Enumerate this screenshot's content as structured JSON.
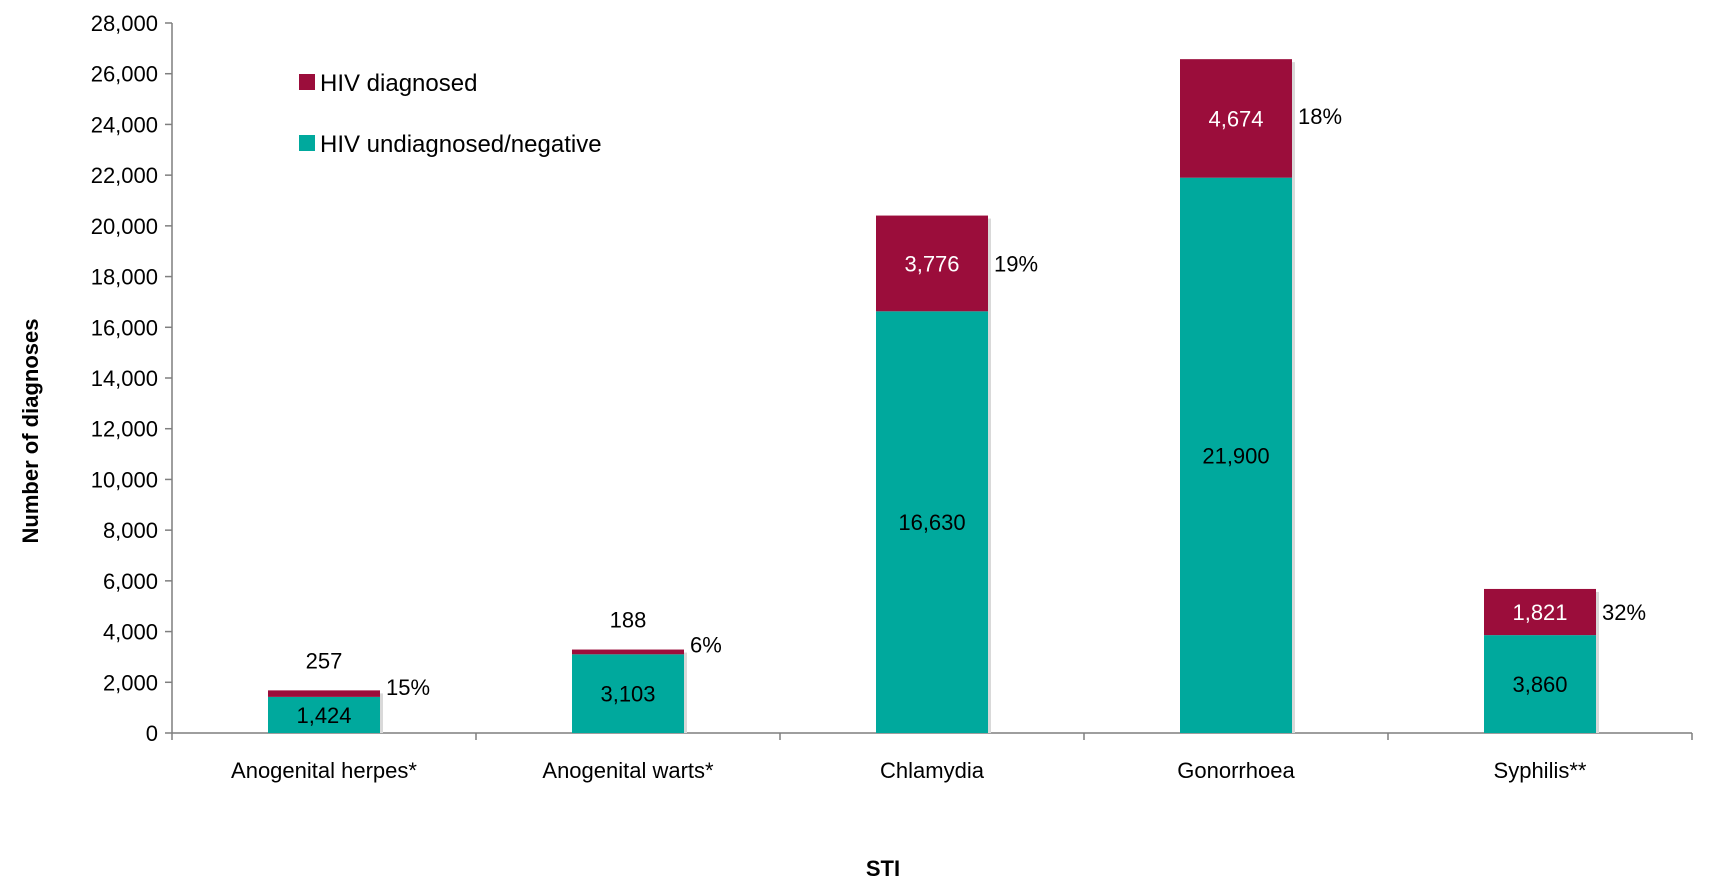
{
  "chart_data": {
    "type": "bar",
    "stacked": true,
    "categories": [
      "Anogenital herpes*",
      "Anogenital warts*",
      "Chlamydia",
      "Gonorrhoea",
      "Syphilis**"
    ],
    "series": [
      {
        "name": "HIV undiagnosed/negative",
        "color": "#00A99D",
        "values": [
          1424,
          3103,
          16630,
          21900,
          3860
        ],
        "labels": [
          "1,424",
          "3,103",
          "16,630",
          "21,900",
          "3,860"
        ]
      },
      {
        "name": "HIV diagnosed",
        "color": "#9B0D3B",
        "values": [
          257,
          188,
          3776,
          4674,
          1821
        ],
        "labels": [
          "257",
          "188",
          "3,776",
          "4,674",
          "1,821"
        ]
      }
    ],
    "percent_labels": [
      "15%",
      "6%",
      "19%",
      "18%",
      "32%"
    ],
    "xlabel": "STI",
    "ylabel": "Number of diagnoses",
    "ylim": [
      0,
      28000
    ],
    "yticks": [
      0,
      2000,
      4000,
      6000,
      8000,
      10000,
      12000,
      14000,
      16000,
      18000,
      20000,
      22000,
      24000,
      26000,
      28000
    ],
    "ytick_labels": [
      "0",
      "2,000",
      "4,000",
      "6,000",
      "8,000",
      "10,000",
      "12,000",
      "14,000",
      "16,000",
      "18,000",
      "20,000",
      "22,000",
      "24,000",
      "26,000",
      "28,000"
    ],
    "legend_order": [
      "HIV diagnosed",
      "HIV undiagnosed/negative"
    ],
    "legend_position": "top-left",
    "grid": false
  }
}
